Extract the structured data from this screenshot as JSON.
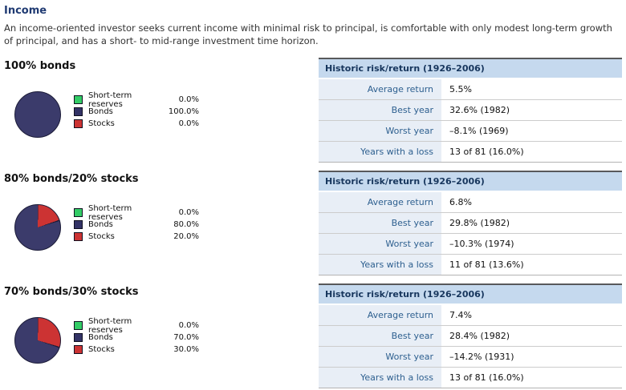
{
  "page": {
    "title": "Income",
    "intro": "An income-oriented investor seeks current income with minimal risk to principal, is comfortable with only modest long-term growth of principal, and has a short- to mid-range investment time horizon."
  },
  "colors": {
    "title_text": "#1f3a72",
    "reserves_green": "#33cc66",
    "bonds_navy": "#3b3b6b",
    "stocks_red": "#cc3333",
    "pie_outline": "#1c1c38",
    "table_header_bg": "#c5d9ee",
    "table_header_text": "#17365d",
    "label_cell_bg": "#e8eef6",
    "label_text": "#2d5f8f"
  },
  "legend": {
    "items": [
      "Short-term reserves",
      "Bonds",
      "Stocks"
    ]
  },
  "risk_table": {
    "header": "Historic risk/return (1926–2006)",
    "row_labels": [
      "Average return",
      "Best year",
      "Worst year",
      "Years with a loss"
    ]
  },
  "sections": [
    {
      "heading": "100% bonds",
      "allocations": [
        "0.0%",
        "100.0%",
        "0.0%"
      ],
      "pie": {
        "reserves": 0.0,
        "bonds": 100.0,
        "stocks": 0.0
      },
      "stats": [
        "5.5%",
        "32.6% (1982)",
        "–8.1% (1969)",
        "13 of 81 (16.0%)"
      ]
    },
    {
      "heading": "80% bonds/20% stocks",
      "allocations": [
        "0.0%",
        "80.0%",
        "20.0%"
      ],
      "pie": {
        "reserves": 0.0,
        "bonds": 80.0,
        "stocks": 20.0
      },
      "stats": [
        "6.8%",
        "29.8% (1982)",
        "–10.3% (1974)",
        "11 of 81 (13.6%)"
      ]
    },
    {
      "heading": "70% bonds/30% stocks",
      "allocations": [
        "0.0%",
        "70.0%",
        "30.0%"
      ],
      "pie": {
        "reserves": 0.0,
        "bonds": 70.0,
        "stocks": 30.0
      },
      "stats": [
        "7.4%",
        "28.4% (1982)",
        "–14.2% (1931)",
        "13 of 81 (16.0%)"
      ]
    }
  ],
  "chart_data": [
    {
      "type": "pie",
      "title": "100% bonds",
      "labels": [
        "Short-term reserves",
        "Bonds",
        "Stocks"
      ],
      "values": [
        0.0,
        100.0,
        0.0
      ],
      "colors": [
        "#33cc66",
        "#3b3b6b",
        "#cc3333"
      ],
      "legend_position": "right"
    },
    {
      "type": "pie",
      "title": "80% bonds/20% stocks",
      "labels": [
        "Short-term reserves",
        "Bonds",
        "Stocks"
      ],
      "values": [
        0.0,
        80.0,
        20.0
      ],
      "colors": [
        "#33cc66",
        "#3b3b6b",
        "#cc3333"
      ],
      "legend_position": "right"
    },
    {
      "type": "pie",
      "title": "70% bonds/30% stocks",
      "labels": [
        "Short-term reserves",
        "Bonds",
        "Stocks"
      ],
      "values": [
        0.0,
        70.0,
        30.0
      ],
      "colors": [
        "#33cc66",
        "#3b3b6b",
        "#cc3333"
      ],
      "legend_position": "right"
    }
  ]
}
